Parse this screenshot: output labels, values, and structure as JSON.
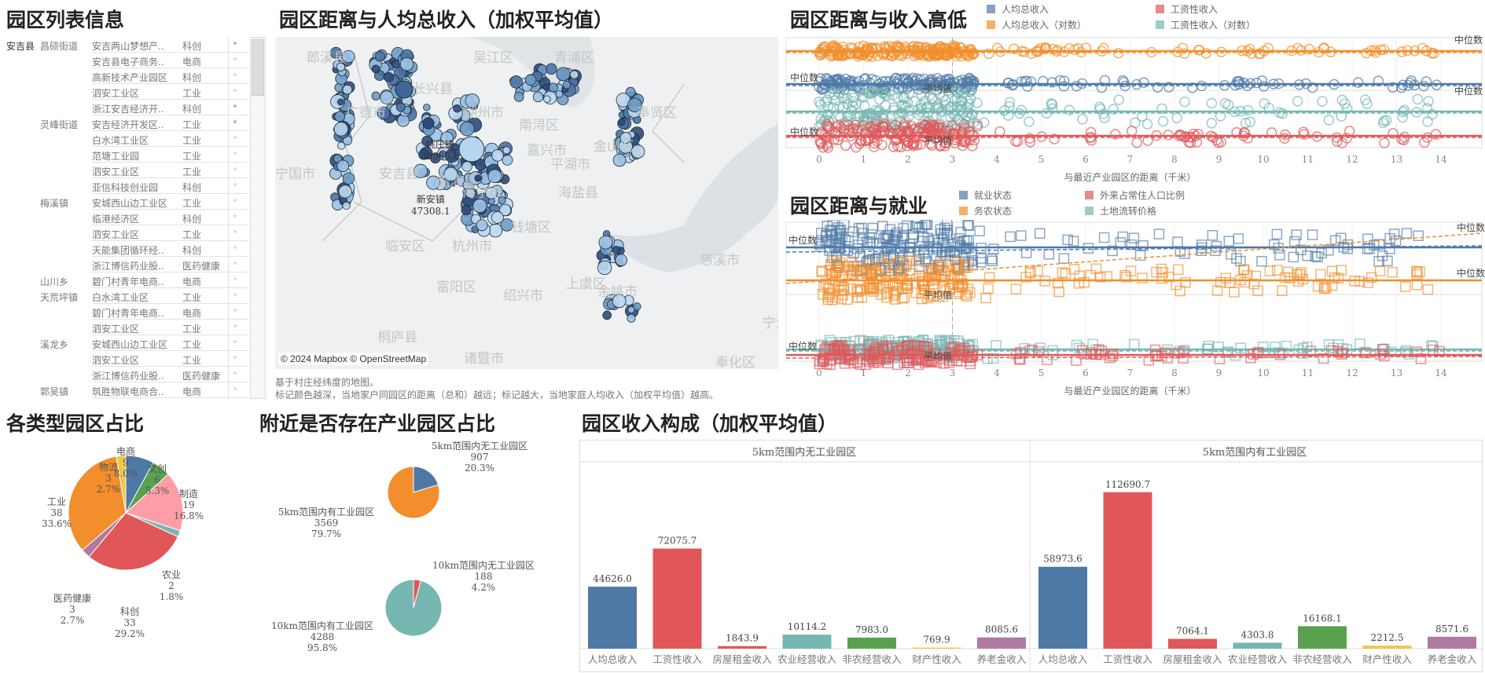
{
  "table": {
    "title": "园区列表信息",
    "rows": [
      [
        "安吉县",
        "昌硕街道",
        "安吉两山梦想产..",
        "科创"
      ],
      [
        "",
        "",
        "安吉县电子商务..",
        "电商"
      ],
      [
        "",
        "",
        "高新技术产业园区",
        "科创"
      ],
      [
        "",
        "",
        "泗安工业区",
        "工业"
      ],
      [
        "",
        "",
        "浙江安吉经济开..",
        "科创"
      ],
      [
        "",
        "灵峰街道",
        "安吉经济开发区..",
        "工业"
      ],
      [
        "",
        "",
        "白水湾工业区",
        "工业"
      ],
      [
        "",
        "",
        "范塘工业园",
        "工业"
      ],
      [
        "",
        "",
        "泗安工业区",
        "工业"
      ],
      [
        "",
        "",
        "亚信科技创业园",
        "科创"
      ],
      [
        "",
        "梅溪镇",
        "安城西山边工业区",
        "工业"
      ],
      [
        "",
        "",
        "临港经济区",
        "科创"
      ],
      [
        "",
        "",
        "泗安工业区",
        "工业"
      ],
      [
        "",
        "",
        "天能集团循环经..",
        "科创"
      ],
      [
        "",
        "",
        "浙江博信药业股..",
        "医药健康"
      ],
      [
        "",
        "山川乡",
        "碧门村青年电商..",
        "电商"
      ],
      [
        "",
        "天荒坪镇",
        "白水湾工业区",
        "工业"
      ],
      [
        "",
        "",
        "碧门村青年电商..",
        "电商"
      ],
      [
        "",
        "",
        "泗安工业区",
        "工业"
      ],
      [
        "",
        "溪龙乡",
        "安城西山边工业区",
        "工业"
      ],
      [
        "",
        "",
        "泗安工业区",
        "工业"
      ],
      [
        "",
        "",
        "浙江博信药业股..",
        "医药健康"
      ],
      [
        "",
        "郭吴镇",
        "筑胜物联电商合..",
        "电商"
      ]
    ]
  },
  "map": {
    "title": "园区距离与人均总收入（加权平均值）",
    "attribution": "© 2024 Mapbox © OpenStreetMap",
    "places": [
      "郎溪县",
      "吴江区",
      "青浦区",
      "广德市",
      "长兴县",
      "湖州市",
      "南浔区",
      "奉贤区",
      "嘉兴市",
      "金山区",
      "宁国市",
      "安吉县",
      "平湖市",
      "德清县",
      "海宁市",
      "海盐县",
      "临安区",
      "杭州市",
      "钱塘区",
      "慈溪市",
      "富阳区",
      "绍兴市",
      "上虞区",
      "余姚市",
      "桐庐县",
      "诸暨市",
      "奉化区",
      "宁波"
    ],
    "labels": [
      {
        "name": "新安镇",
        "value": "47308.1"
      },
      {
        "name": "姚庄镇",
        "value": "38985.0"
      }
    ],
    "caption1": "基于村庄经纬度的地图。",
    "caption2": "标记颜色越深，当地家户同园区的距离（总和）越远；标记越大，当地家庭人均收入（加权平均值）越高。"
  },
  "income_scatter": {
    "title": "园区距离与收入高低",
    "legend": [
      {
        "name": "人均总收入",
        "color": "#4e79a7"
      },
      {
        "name": "工资性收入",
        "color": "#e15759"
      },
      {
        "name": "人均总收入（对数）",
        "color": "#f28e2b"
      },
      {
        "name": "工资性收入（对数）",
        "color": "#76b7b2"
      }
    ],
    "median_label": "中位数",
    "mean_label": "平均值",
    "xlabel": "与最近产业园区的距离（千米）",
    "xticks": [
      "0",
      "1",
      "2",
      "3",
      "4",
      "5",
      "6",
      "7",
      "8",
      "9",
      "10",
      "11",
      "12",
      "13",
      "14"
    ],
    "mean_x": 3
  },
  "employment_scatter": {
    "title": "园区距离与就业",
    "legend": [
      {
        "name": "就业状态",
        "color": "#4e79a7"
      },
      {
        "name": "外来占常住人口比例",
        "color": "#e15759"
      },
      {
        "name": "务农状态",
        "color": "#f28e2b"
      },
      {
        "name": "土地流转价格",
        "color": "#76b7b2"
      }
    ],
    "median_label": "中位数",
    "mean_label": "平均值",
    "xlabel": "与最近产业园区的距离（千米）",
    "xticks": [
      "0",
      "1",
      "2",
      "3",
      "4",
      "5",
      "6",
      "7",
      "8",
      "9",
      "10",
      "11",
      "12",
      "13",
      "14"
    ]
  },
  "chart_data": [
    {
      "type": "pie",
      "title": "各类型园区占比",
      "slices": [
        {
          "name": "电商",
          "value": 9,
          "pct": "8.0%",
          "color": "#4e79a7"
        },
        {
          "name": "文创",
          "value": 6,
          "pct": "5.3%",
          "color": "#59a14f"
        },
        {
          "name": "制造",
          "value": 19,
          "pct": "16.8%",
          "color": "#ff9da7"
        },
        {
          "name": "农业",
          "value": 2,
          "pct": "1.8%",
          "color": "#76b7b2"
        },
        {
          "name": "科创",
          "value": 33,
          "pct": "29.2%",
          "color": "#e15759"
        },
        {
          "name": "医药健康",
          "value": 3,
          "pct": "2.7%",
          "color": "#b07aa1"
        },
        {
          "name": "工业",
          "value": 38,
          "pct": "33.6%",
          "color": "#f28e2b"
        },
        {
          "name": "物流",
          "value": 3,
          "pct": "2.7%",
          "color": "#edc948"
        }
      ]
    },
    {
      "type": "pie",
      "title": "附近是否存在产业园区占比",
      "slices": [
        {
          "name": "5km范围内无工业园区",
          "value": 907,
          "pct": "20.3%",
          "color": "#4e79a7"
        },
        {
          "name": "5km范围内有工业园区",
          "value": 3569,
          "pct": "79.7%",
          "color": "#f28e2b"
        }
      ]
    },
    {
      "type": "pie",
      "slices": [
        {
          "name": "10km范围内无工业园区",
          "value": 188,
          "pct": "4.2%",
          "color": "#e15759"
        },
        {
          "name": "10km范围内有工业园区",
          "value": 4288,
          "pct": "95.8%",
          "color": "#76b7b2"
        }
      ]
    },
    {
      "type": "bar",
      "title": "园区收入构成（加权平均值）",
      "categories": [
        "人均总收入",
        "工资性收入",
        "房屋租金收入",
        "农业经营收入",
        "非农经营收入",
        "财产性收入",
        "养老金收入"
      ],
      "colors": [
        "#4e79a7",
        "#e15759",
        "#e15759",
        "#76b7b2",
        "#59a14f",
        "#edc948",
        "#b07aa1"
      ],
      "ylim": [
        0,
        125000
      ],
      "series": [
        {
          "name": "5km范围内无工业园区",
          "values": [
            44626.0,
            72075.7,
            1843.9,
            10114.2,
            7983.0,
            769.9,
            8085.6
          ],
          "labels": [
            "44626.0",
            "72075.7",
            "1843.9",
            "10114.2",
            "7983.0",
            "769.9",
            "8085.6"
          ]
        },
        {
          "name": "5km范围内有工业园区",
          "values": [
            58973.6,
            112690.7,
            7064.1,
            4303.8,
            16168.1,
            2212.5,
            8571.6
          ],
          "labels": [
            "58973.6",
            "112690.7",
            "7064.1",
            "4303.8",
            "16168.1",
            "2212.5",
            "8571.6"
          ]
        }
      ]
    }
  ]
}
